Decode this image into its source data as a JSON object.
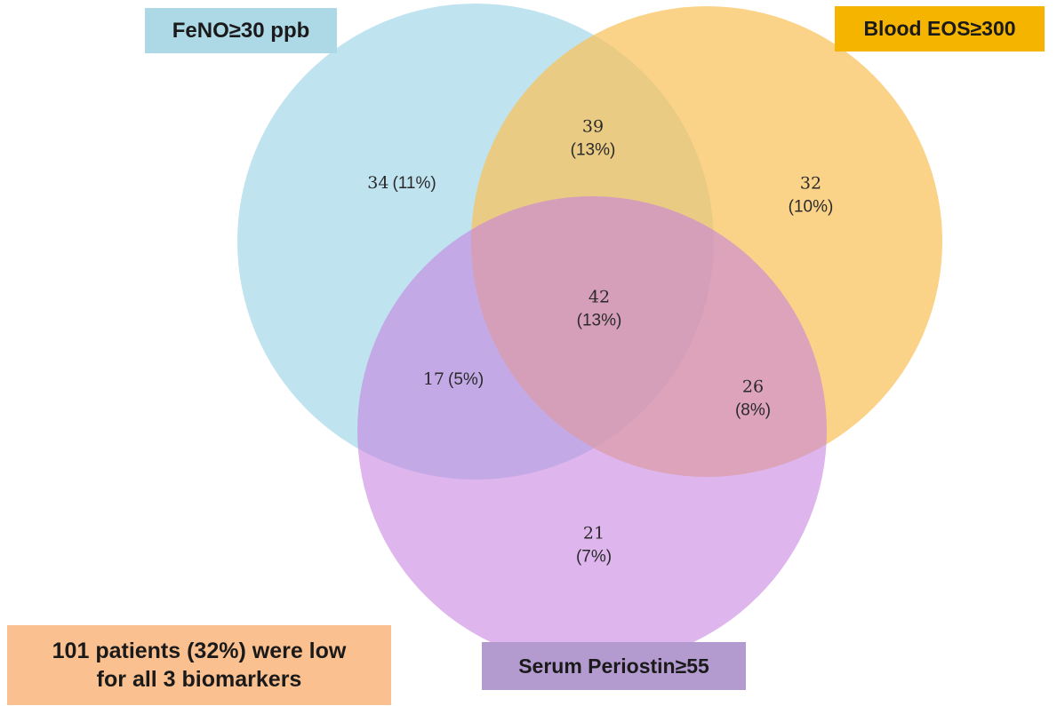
{
  "sets": [
    {
      "key": "feno",
      "label": "FeNO≥30 ppb",
      "color": "#a8d8ea"
    },
    {
      "key": "eos",
      "label": "Blood EOS≥300",
      "color": "#f9c25a"
    },
    {
      "key": "peri",
      "label": "Serum Periostin≥55",
      "color": "#c77fe0"
    }
  ],
  "regions": {
    "feno_only": {
      "count": "34",
      "percent": "(11%)"
    },
    "feno_eos": {
      "count": "39",
      "percent": "(13%)"
    },
    "eos_only": {
      "count": "32",
      "percent": "(10%)"
    },
    "all_three": {
      "count": "42",
      "percent": "(13%)"
    },
    "feno_periostin": {
      "count": "17",
      "percent": "(5%)"
    },
    "eos_periostin": {
      "count": "26",
      "percent": "(8%)"
    },
    "periostin_only": {
      "count": "21",
      "percent": "(7%)"
    }
  },
  "note": {
    "line1": "101 patients (32%) were low",
    "line2": "for all 3 biomarkers"
  }
}
